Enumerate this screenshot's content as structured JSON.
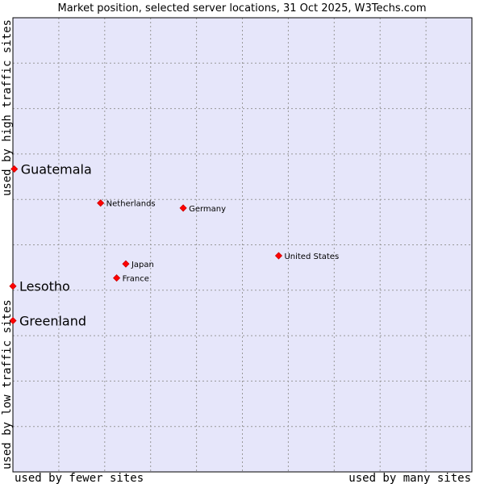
{
  "chart_data": {
    "type": "scatter",
    "title": "Market position, selected server locations, 31 Oct 2025, W3Techs.com",
    "xlabel_left": "used by fewer sites",
    "xlabel_right": "used by many sites",
    "ylabel_bottom": "used by low traffic sites",
    "ylabel_top": "used by high traffic sites",
    "xlim": [
      0,
      100
    ],
    "ylim": [
      0,
      100
    ],
    "grid": true,
    "colors": {
      "plot_background": "#e6e6fa",
      "grid": "#999999",
      "point": "#ff0000",
      "point_stroke": "#cc0000"
    },
    "points": [
      {
        "label": "Guatemala",
        "x": 0.3,
        "y": 66.7,
        "emphasis": true
      },
      {
        "label": "Netherlands",
        "x": 19.1,
        "y": 59.2,
        "emphasis": false
      },
      {
        "label": "Germany",
        "x": 37.1,
        "y": 58.1,
        "emphasis": false
      },
      {
        "label": "United States",
        "x": 57.9,
        "y": 47.6,
        "emphasis": false
      },
      {
        "label": "Japan",
        "x": 24.6,
        "y": 45.8,
        "emphasis": false
      },
      {
        "label": "France",
        "x": 22.6,
        "y": 42.7,
        "emphasis": false
      },
      {
        "label": "Lesotho",
        "x": 0.0,
        "y": 40.9,
        "emphasis": true
      },
      {
        "label": "Greenland",
        "x": 0.0,
        "y": 33.3,
        "emphasis": true
      }
    ]
  }
}
